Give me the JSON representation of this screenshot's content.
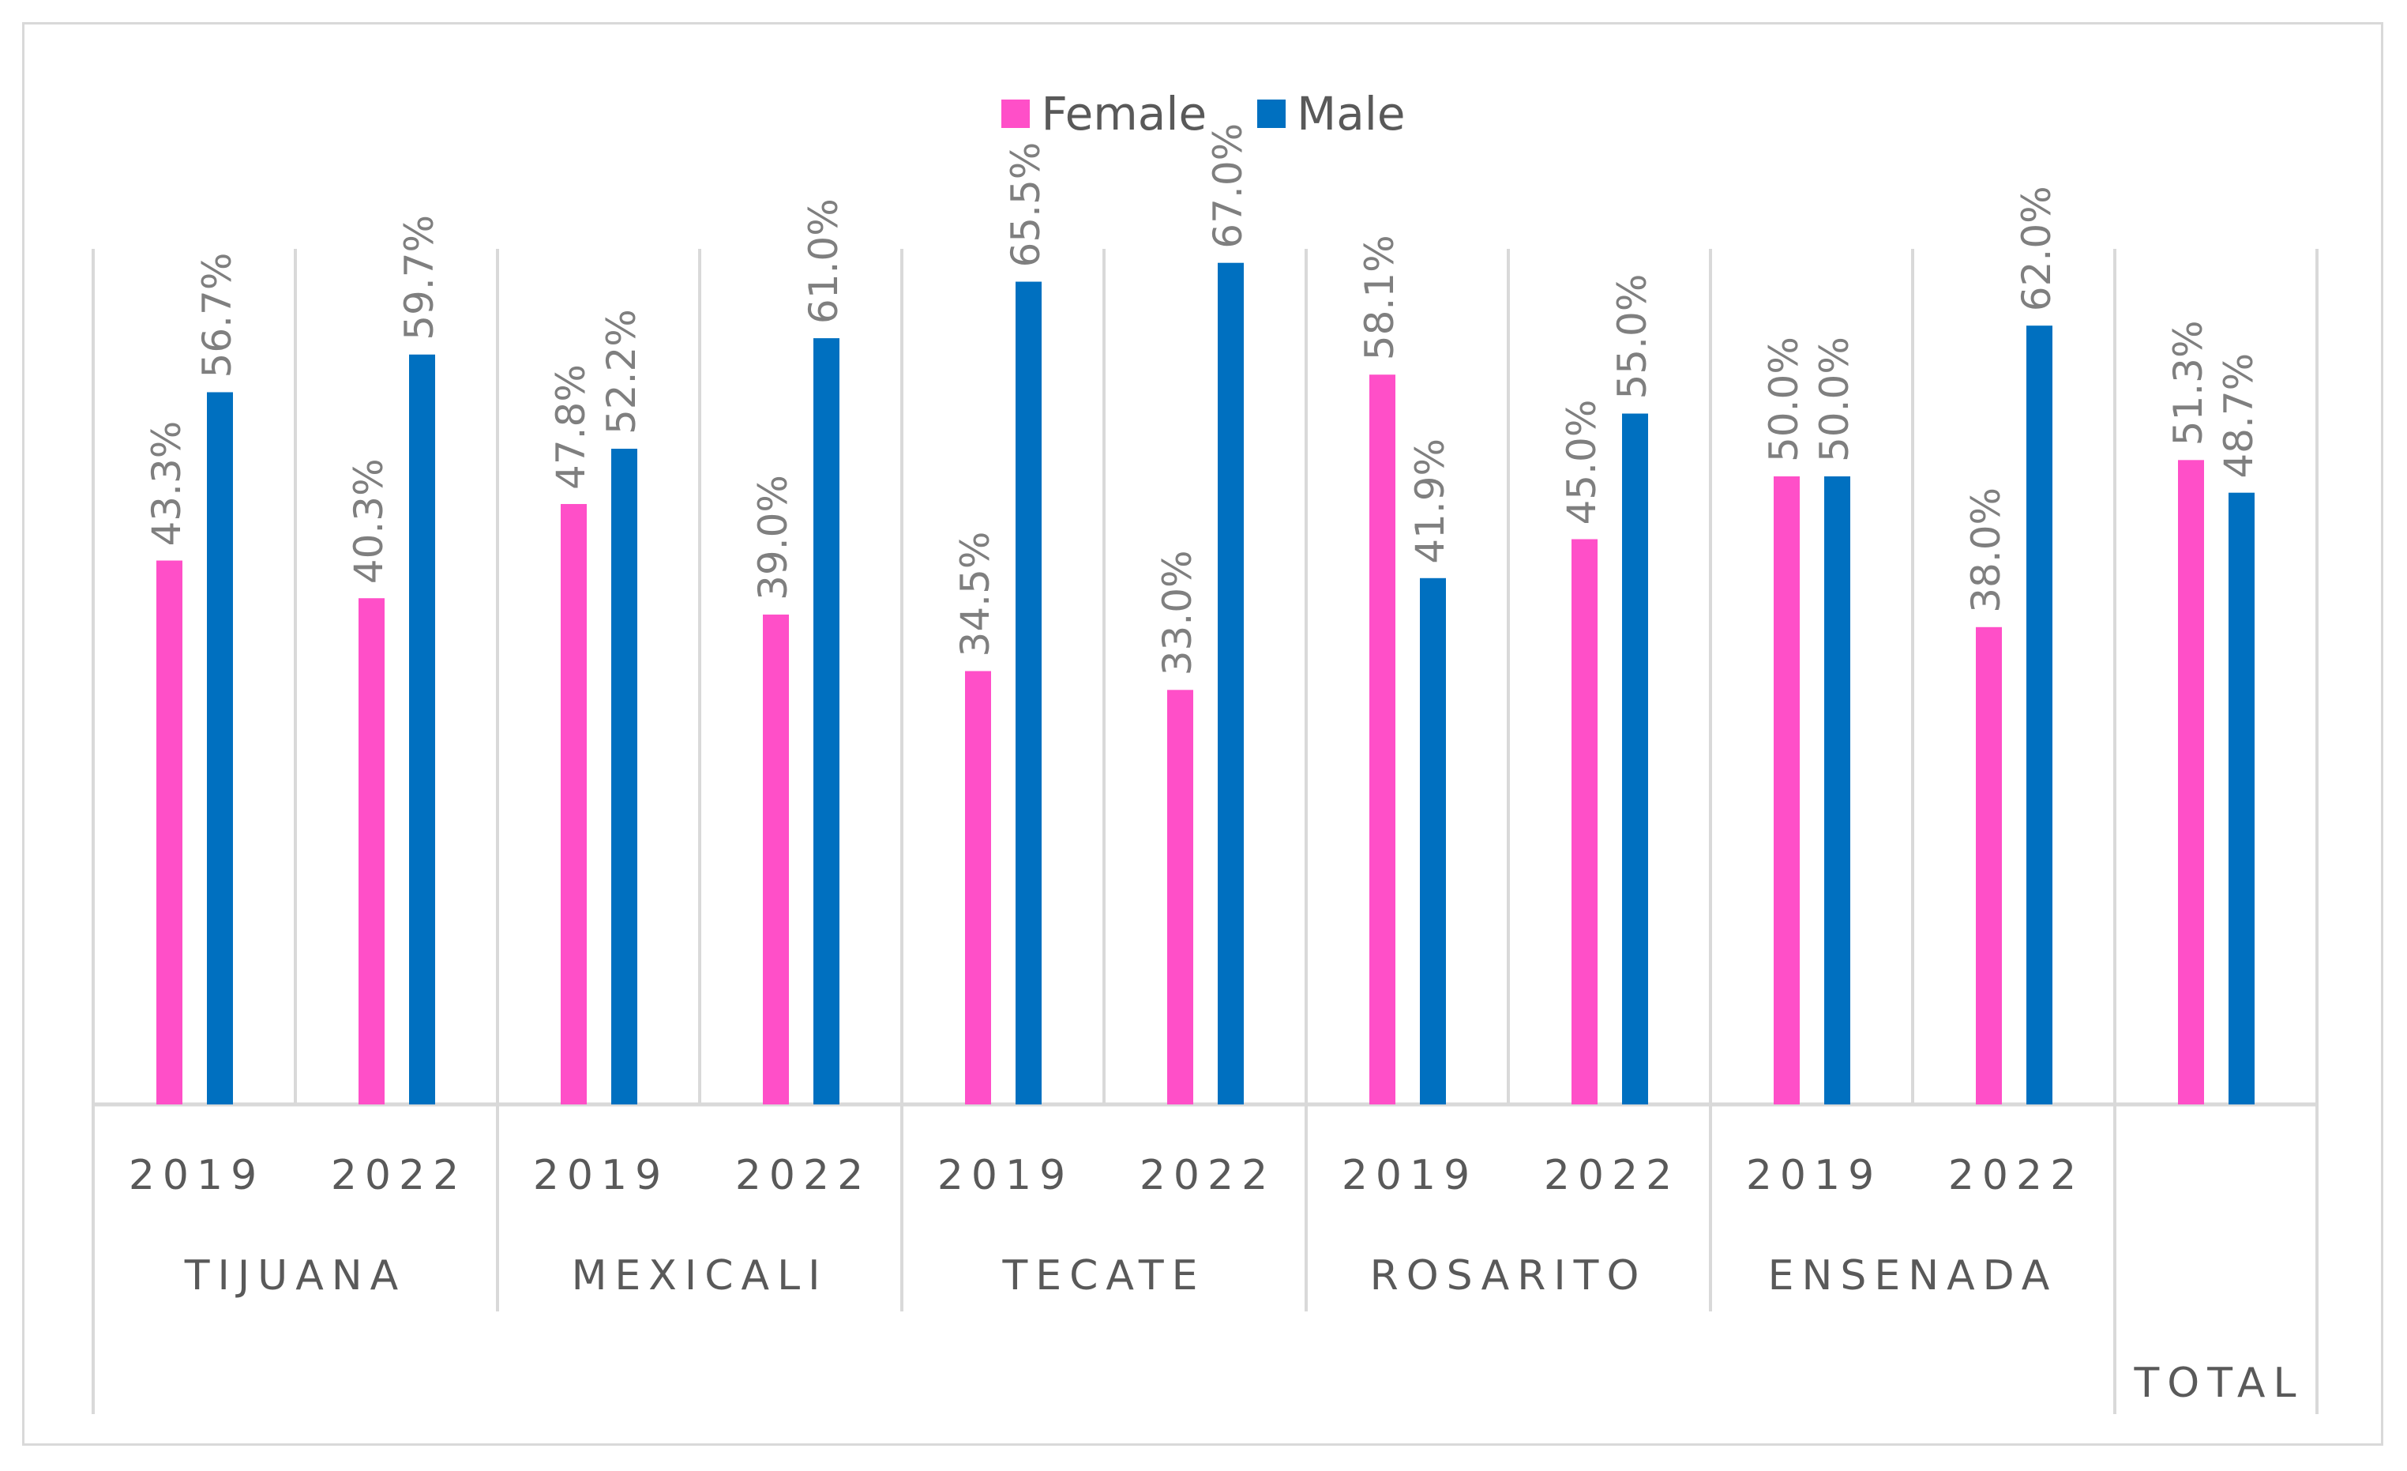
{
  "chart_data": {
    "type": "bar",
    "legend": {
      "position": "top",
      "entries": [
        {
          "name": "Female",
          "color": "#ff4fc8"
        },
        {
          "name": "Male",
          "color": "#0070c0"
        }
      ]
    },
    "groups": [
      {
        "name": "TIJUANA",
        "years": [
          {
            "year": "2019",
            "female": 43.3,
            "male": 56.7,
            "female_label": "43.3%",
            "male_label": "56.7%"
          },
          {
            "year": "2022",
            "female": 40.3,
            "male": 59.7,
            "female_label": "40.3%",
            "male_label": "59.7%"
          }
        ]
      },
      {
        "name": "MEXICALI",
        "years": [
          {
            "year": "2019",
            "female": 47.8,
            "male": 52.2,
            "female_label": "47.8%",
            "male_label": "52.2%"
          },
          {
            "year": "2022",
            "female": 39.0,
            "male": 61.0,
            "female_label": "39.0%",
            "male_label": "61.0%"
          }
        ]
      },
      {
        "name": "TECATE",
        "years": [
          {
            "year": "2019",
            "female": 34.5,
            "male": 65.5,
            "female_label": "34.5%",
            "male_label": "65.5%"
          },
          {
            "year": "2022",
            "female": 33.0,
            "male": 67.0,
            "female_label": "33.0%",
            "male_label": "67.0%"
          }
        ]
      },
      {
        "name": "ROSARITO",
        "years": [
          {
            "year": "2019",
            "female": 58.1,
            "male": 41.9,
            "female_label": "58.1%",
            "male_label": "41.9%"
          },
          {
            "year": "2022",
            "female": 45.0,
            "male": 55.0,
            "female_label": "45.0%",
            "male_label": "55.0%"
          }
        ]
      },
      {
        "name": "ENSENADA",
        "years": [
          {
            "year": "2019",
            "female": 50.0,
            "male": 50.0,
            "female_label": "50.0%",
            "male_label": "50.0%"
          },
          {
            "year": "2022",
            "female": 38.0,
            "male": 62.0,
            "female_label": "38.0%",
            "male_label": "62.0%"
          }
        ]
      }
    ],
    "total": {
      "name": "TOTAL",
      "female": 51.3,
      "male": 48.7,
      "female_label": "51.3%",
      "male_label": "48.7%"
    },
    "ylim": [
      0,
      75
    ],
    "grid": false,
    "title": "",
    "xlabel": "",
    "ylabel": ""
  }
}
